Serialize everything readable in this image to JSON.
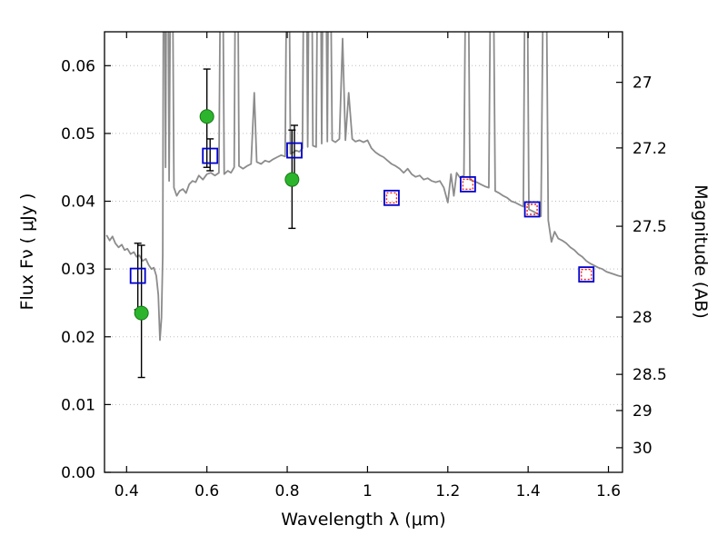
{
  "chart_data": {
    "type": "line+scatter",
    "title": "",
    "xlabel": "Wavelength  λ  (μm)",
    "ylabel": "Flux  Fν  ( μJy )",
    "ylabel_right": "Magnitude (AB)",
    "xlim": [
      0.345,
      1.635
    ],
    "ylim": [
      0.0,
      0.065
    ],
    "x_tick_labels": [
      "0.4",
      "0.6",
      "0.8",
      "1",
      "1.2",
      "1.4",
      "1.6"
    ],
    "y_tick_labels_left": [
      "0.00",
      "0.01",
      "0.02",
      "0.03",
      "0.04",
      "0.05",
      "0.06"
    ],
    "y_tick_labels_right_mag": [
      "27",
      "27.2",
      "27.5",
      "28",
      "28.5",
      "29",
      "30"
    ],
    "ab_zeropoint_microjansky": 23.9,
    "grid": "horizontal-dotted",
    "legend": "none",
    "colors": {
      "spectrum": "#8c8c8c",
      "green_points": "#2cb52c",
      "green_edge": "#157815",
      "blue_squares": "#0000cc",
      "red_squares": "#ff2020",
      "error_bars": "#000000",
      "frame": "#000000"
    },
    "series": [
      {
        "name": "model-spectrum",
        "type": "line",
        "x": [
          0.35,
          0.358,
          0.365,
          0.372,
          0.38,
          0.388,
          0.395,
          0.402,
          0.41,
          0.418,
          0.425,
          0.432,
          0.44,
          0.448,
          0.455,
          0.462,
          0.468,
          0.474,
          0.479,
          0.483,
          0.487,
          0.49,
          0.493,
          0.497,
          0.501,
          0.506,
          0.512,
          0.518,
          0.525,
          0.532,
          0.54,
          0.548,
          0.556,
          0.564,
          0.572,
          0.58,
          0.59,
          0.6,
          0.61,
          0.62,
          0.63,
          0.637,
          0.643,
          0.652,
          0.66,
          0.668,
          0.674,
          0.68,
          0.69,
          0.7,
          0.71,
          0.718,
          0.724,
          0.735,
          0.745,
          0.755,
          0.765,
          0.775,
          0.785,
          0.795,
          0.802,
          0.808,
          0.815,
          0.822,
          0.83,
          0.838,
          0.845,
          0.851,
          0.858,
          0.864,
          0.872,
          0.88,
          0.886,
          0.893,
          0.9,
          0.905,
          0.912,
          0.92,
          0.93,
          0.938,
          0.945,
          0.953,
          0.962,
          0.97,
          0.98,
          0.99,
          1.0,
          1.01,
          1.02,
          1.03,
          1.04,
          1.05,
          1.06,
          1.07,
          1.08,
          1.09,
          1.1,
          1.11,
          1.12,
          1.13,
          1.14,
          1.15,
          1.16,
          1.17,
          1.18,
          1.19,
          1.2,
          1.208,
          1.215,
          1.222,
          1.23,
          1.24,
          1.248,
          1.255,
          1.262,
          1.272,
          1.282,
          1.292,
          1.302,
          1.31,
          1.318,
          1.328,
          1.338,
          1.348,
          1.358,
          1.368,
          1.378,
          1.388,
          1.395,
          1.402,
          1.412,
          1.422,
          1.432,
          1.442,
          1.45,
          1.458,
          1.466,
          1.475,
          1.485,
          1.495,
          1.505,
          1.515,
          1.525,
          1.535,
          1.545,
          1.555,
          1.565,
          1.575,
          1.585,
          1.595,
          1.605,
          1.615,
          1.625,
          1.633
        ],
        "y": [
          0.035,
          0.0342,
          0.0348,
          0.0338,
          0.0332,
          0.0336,
          0.0328,
          0.033,
          0.0322,
          0.0325,
          0.0318,
          0.032,
          0.0312,
          0.0315,
          0.0306,
          0.03,
          0.0302,
          0.029,
          0.0262,
          0.0195,
          0.0228,
          0.032,
          0.1,
          0.045,
          0.1,
          0.043,
          0.098,
          0.042,
          0.0408,
          0.0415,
          0.0418,
          0.0412,
          0.0425,
          0.043,
          0.0428,
          0.0438,
          0.0432,
          0.044,
          0.0442,
          0.0438,
          0.0442,
          0.1,
          0.044,
          0.0445,
          0.0442,
          0.045,
          0.105,
          0.0452,
          0.0448,
          0.0452,
          0.0455,
          0.056,
          0.0458,
          0.0455,
          0.046,
          0.0458,
          0.0462,
          0.0465,
          0.0468,
          0.0466,
          0.1,
          0.047,
          0.0472,
          0.0475,
          0.0473,
          0.0478,
          0.105,
          0.048,
          0.11,
          0.0482,
          0.048,
          0.11,
          0.0485,
          0.105,
          0.0488,
          0.095,
          0.049,
          0.0487,
          0.0492,
          0.064,
          0.049,
          0.056,
          0.0492,
          0.0488,
          0.049,
          0.0487,
          0.049,
          0.0478,
          0.0472,
          0.0468,
          0.0465,
          0.046,
          0.0455,
          0.0452,
          0.0448,
          0.0442,
          0.0448,
          0.044,
          0.0436,
          0.0438,
          0.0432,
          0.0434,
          0.043,
          0.0428,
          0.043,
          0.042,
          0.0398,
          0.044,
          0.0408,
          0.0442,
          0.0435,
          0.0438,
          0.1,
          0.0432,
          0.043,
          0.0428,
          0.0425,
          0.0422,
          0.042,
          0.1,
          0.0415,
          0.0412,
          0.0408,
          0.0405,
          0.04,
          0.0398,
          0.0395,
          0.0392,
          0.1,
          0.0388,
          0.0385,
          0.0382,
          0.0378,
          0.1,
          0.0372,
          0.034,
          0.0355,
          0.0345,
          0.0342,
          0.0338,
          0.0332,
          0.0328,
          0.0322,
          0.0318,
          0.0312,
          0.0308,
          0.0305,
          0.0302,
          0.03,
          0.0296,
          0.0294,
          0.0292,
          0.029,
          0.0289
        ]
      },
      {
        "name": "ground-photometry",
        "type": "scatter",
        "marker": "filled-circle",
        "points": [
          {
            "x": 0.437,
            "y": 0.0235,
            "err_lo": 0.014,
            "err_hi": 0.0335
          },
          {
            "x": 0.6,
            "y": 0.0525,
            "err_lo": 0.045,
            "err_hi": 0.0595
          },
          {
            "x": 0.812,
            "y": 0.0432,
            "err_lo": 0.036,
            "err_hi": 0.0505
          }
        ]
      },
      {
        "name": "observed-photometry",
        "type": "scatter",
        "marker": "open-square",
        "points": [
          {
            "x": 0.428,
            "y": 0.029,
            "err_lo": 0.024,
            "err_hi": 0.0338
          },
          {
            "x": 0.608,
            "y": 0.0467,
            "err_lo": 0.0445,
            "err_hi": 0.0492
          },
          {
            "x": 0.818,
            "y": 0.0475,
            "err_lo": 0.0438,
            "err_hi": 0.0512
          },
          {
            "x": 1.06,
            "y": 0.0405
          },
          {
            "x": 1.25,
            "y": 0.0425
          },
          {
            "x": 1.41,
            "y": 0.0388
          },
          {
            "x": 1.545,
            "y": 0.0292
          }
        ]
      },
      {
        "name": "model-photometry",
        "type": "scatter",
        "marker": "dotted-square",
        "points": [
          {
            "x": 1.06,
            "y": 0.0405
          },
          {
            "x": 1.25,
            "y": 0.0425
          },
          {
            "x": 1.41,
            "y": 0.0388
          },
          {
            "x": 1.545,
            "y": 0.0292
          }
        ]
      }
    ]
  }
}
